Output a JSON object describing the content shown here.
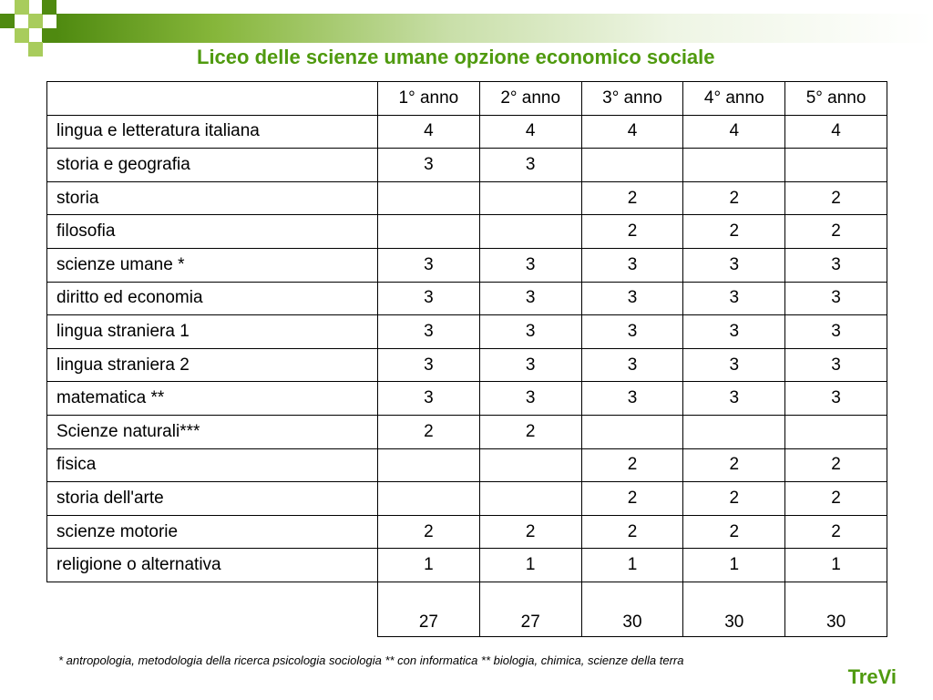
{
  "title": "Liceo delle scienze umane opzione economico sociale",
  "table": {
    "headers": [
      "1° anno",
      "2° anno",
      "3° anno",
      "4° anno",
      "5° anno"
    ],
    "rows": [
      {
        "subject": "lingua e letteratura italiana",
        "values": [
          "4",
          "4",
          "4",
          "4",
          "4"
        ]
      },
      {
        "subject": "storia e geografia",
        "values": [
          "3",
          "3",
          "",
          "",
          ""
        ]
      },
      {
        "subject": "storia",
        "values": [
          "",
          "",
          "2",
          "2",
          "2"
        ]
      },
      {
        "subject": "filosofia",
        "values": [
          "",
          "",
          "2",
          "2",
          "2"
        ]
      },
      {
        "subject": "scienze umane *",
        "values": [
          "3",
          "3",
          "3",
          "3",
          "3"
        ]
      },
      {
        "subject": "diritto ed economia",
        "values": [
          "3",
          "3",
          "3",
          "3",
          "3"
        ]
      },
      {
        "subject": "lingua straniera 1",
        "values": [
          "3",
          "3",
          "3",
          "3",
          "3"
        ]
      },
      {
        "subject": "lingua straniera 2",
        "values": [
          "3",
          "3",
          "3",
          "3",
          "3"
        ]
      },
      {
        "subject": "matematica **",
        "values": [
          "3",
          "3",
          "3",
          "3",
          "3"
        ]
      },
      {
        "subject": "Scienze naturali***",
        "values": [
          "2",
          "2",
          "",
          "",
          ""
        ]
      },
      {
        "subject": "fisica",
        "values": [
          "",
          "",
          "2",
          "2",
          "2"
        ]
      },
      {
        "subject": "storia dell'arte",
        "values": [
          "",
          "",
          "2",
          "2",
          "2"
        ]
      },
      {
        "subject": "scienze motorie",
        "values": [
          "2",
          "2",
          "2",
          "2",
          "2"
        ]
      },
      {
        "subject": "religione o alternativa",
        "values": [
          "1",
          "1",
          "1",
          "1",
          "1"
        ]
      }
    ],
    "totals": [
      "27",
      "27",
      "30",
      "30",
      "30"
    ]
  },
  "footnote": "* antropologia, metodologia della ricerca psicologia sociologia  ** con informatica ** biologia, chimica, scienze della terra",
  "logo": "TreVi",
  "colors": {
    "accent_green": "#4f9a0f",
    "square_dark": "#4f8a10",
    "square_light": "#a8cc5c"
  }
}
